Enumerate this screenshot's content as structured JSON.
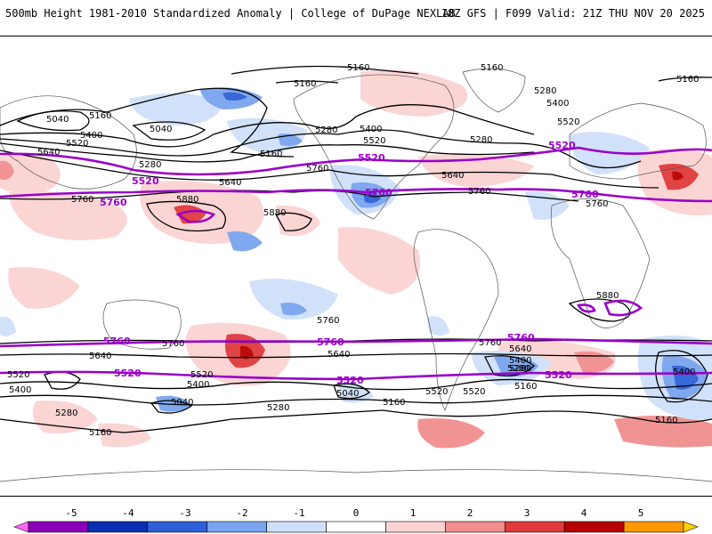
{
  "header": {
    "title": "500mb Height 1981-2010 Standardized Anomaly | College of DuPage NEXLAB",
    "run_info": "18Z GFS | F099 Valid: 21Z THU NOV 20 2025"
  },
  "colorbar": {
    "ticks": [
      "-5",
      "-4",
      "-3",
      "-2",
      "-1",
      "0",
      "1",
      "2",
      "3",
      "4",
      "5"
    ],
    "colors": [
      "#ff66ff",
      "#8a00b8",
      "#0a2fb0",
      "#2e5fd8",
      "#7aa4ee",
      "#cfe0fa",
      "#ffffff",
      "#fbd2d2",
      "#f28e8e",
      "#e03a3a",
      "#b80000",
      "#ff9900",
      "#ffd200"
    ]
  },
  "contour_labels": {
    "black": [
      "5160",
      "5160",
      "5160",
      "5040",
      "5160",
      "5040",
      "5400",
      "5520",
      "5640",
      "5280",
      "5160",
      "5280",
      "5400",
      "5520",
      "5160",
      "5280",
      "5400",
      "5520",
      "5280",
      "5640",
      "5760",
      "5640",
      "5760",
      "5880",
      "5880",
      "5760",
      "5880",
      "5760",
      "5640",
      "5760",
      "5760",
      "5640",
      "5520",
      "5400",
      "5280",
      "5040",
      "5160",
      "5280",
      "5520",
      "5400",
      "5040",
      "5280",
      "5160",
      "5760",
      "5640",
      "5400",
      "5280",
      "5520",
      "5160",
      "5520",
      "5400",
      "5160"
    ],
    "purple": [
      "5520",
      "5760",
      "5520",
      "5760",
      "5520",
      "5760",
      "5760",
      "5760",
      "5760",
      "5520",
      "5520",
      "5520"
    ]
  },
  "colors": {
    "contour_black": "#000000",
    "contour_purple": "#9a00c8",
    "coastline": "#555555"
  }
}
